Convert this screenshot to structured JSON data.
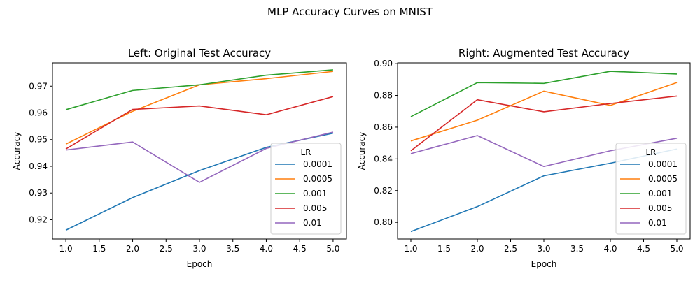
{
  "figure": {
    "suptitle": "MLP Accuracy Curves on MNIST"
  },
  "colors": {
    "0.0001": "#1f77b4",
    "0.0005": "#ff7f0e",
    "0.001": "#2ca02c",
    "0.005": "#d62728",
    "0.01": "#9467bd"
  },
  "chart_data": [
    {
      "type": "line",
      "title": "Left: Original Test Accuracy",
      "xlabel": "Epoch",
      "ylabel": "Accuracy",
      "xlim": [
        0.8,
        5.2
      ],
      "ylim": [
        0.9128,
        0.9787
      ],
      "xticks": [
        "1.0",
        "1.5",
        "2.0",
        "2.5",
        "3.0",
        "3.5",
        "4.0",
        "4.5",
        "5.0"
      ],
      "yticks": [
        "0.92",
        "0.93",
        "0.94",
        "0.95",
        "0.96",
        "0.97"
      ],
      "grid": false,
      "legend": {
        "title": "LR",
        "placement": "lower right"
      },
      "x": [
        1,
        2,
        3,
        4,
        5
      ],
      "series": [
        {
          "name": "0.0001",
          "values": [
            0.9161,
            0.9283,
            0.9384,
            0.9471,
            0.9524
          ]
        },
        {
          "name": "0.0005",
          "values": [
            0.9483,
            0.9606,
            0.9705,
            0.9728,
            0.9755
          ]
        },
        {
          "name": "0.001",
          "values": [
            0.9612,
            0.9684,
            0.9705,
            0.9741,
            0.9761
          ]
        },
        {
          "name": "0.005",
          "values": [
            0.9465,
            0.9613,
            0.9626,
            0.9593,
            0.9661
          ]
        },
        {
          "name": "0.01",
          "values": [
            0.9461,
            0.9491,
            0.934,
            0.9467,
            0.9528
          ]
        }
      ]
    },
    {
      "type": "line",
      "title": "Right: Augmented Test Accuracy",
      "xlabel": "Epoch",
      "ylabel": "Accuracy",
      "xlim": [
        0.8,
        5.2
      ],
      "ylim": [
        0.7895,
        0.9005
      ],
      "xticks": [
        "1.0",
        "1.5",
        "2.0",
        "2.5",
        "3.0",
        "3.5",
        "4.0",
        "4.5",
        "5.0"
      ],
      "yticks": [
        "0.80",
        "0.82",
        "0.84",
        "0.86",
        "0.88",
        "0.90"
      ],
      "grid": false,
      "legend": {
        "title": "LR",
        "placement": "lower right"
      },
      "x": [
        1,
        2,
        3,
        4,
        5
      ],
      "series": [
        {
          "name": "0.0001",
          "values": [
            0.7942,
            0.8099,
            0.8293,
            0.8373,
            0.8462
          ]
        },
        {
          "name": "0.0005",
          "values": [
            0.8513,
            0.8644,
            0.8827,
            0.8737,
            0.8881
          ]
        },
        {
          "name": "0.001",
          "values": [
            0.8666,
            0.8881,
            0.8876,
            0.8952,
            0.8935
          ]
        },
        {
          "name": "0.005",
          "values": [
            0.8451,
            0.8773,
            0.8697,
            0.8749,
            0.8796
          ]
        },
        {
          "name": "0.01",
          "values": [
            0.8433,
            0.8547,
            0.8352,
            0.8451,
            0.853
          ]
        }
      ]
    }
  ]
}
